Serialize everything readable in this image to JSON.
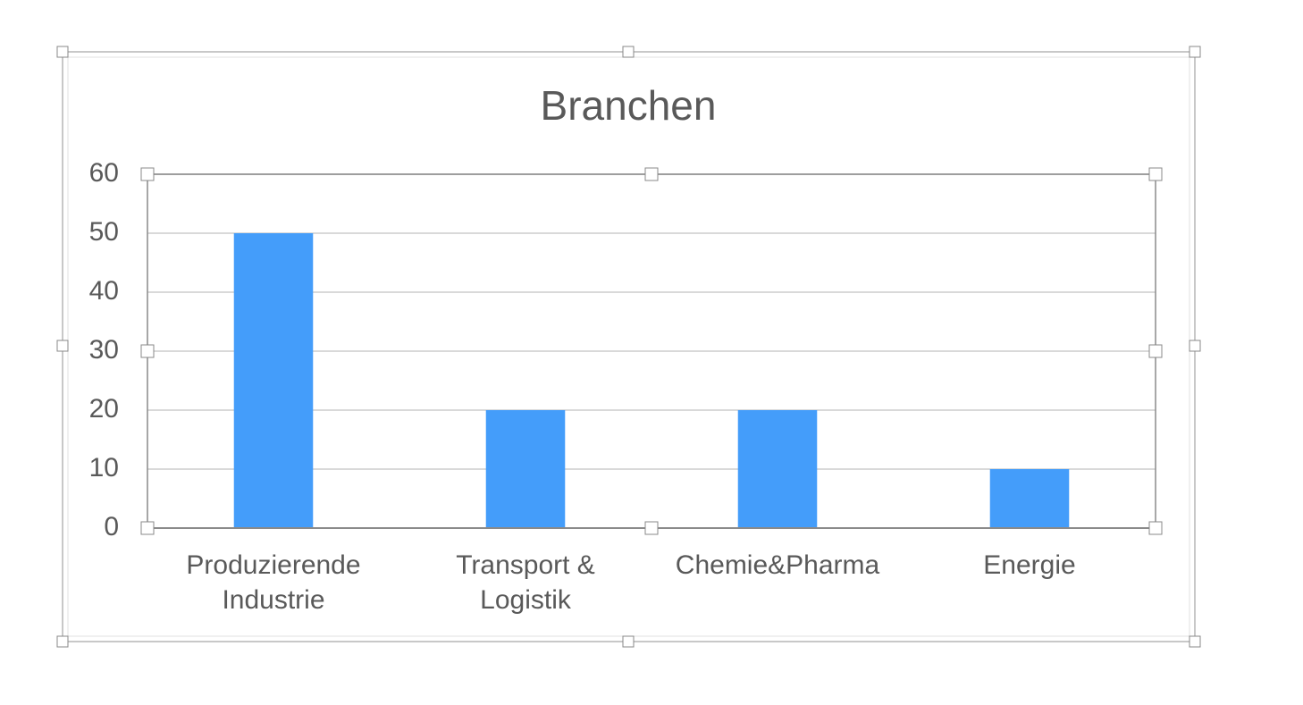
{
  "chart_data": {
    "type": "bar",
    "title": "Branchen",
    "categories": [
      "Produzierende\nIndustrie",
      "Transport &\nLogistik",
      "Chemie&Pharma",
      "Energie"
    ],
    "values": [
      50,
      20,
      20,
      10
    ],
    "color": "#449dfa",
    "ylim": [
      0,
      60
    ],
    "yticks": [
      0,
      10,
      20,
      30,
      40,
      50,
      60
    ],
    "grid": true
  }
}
